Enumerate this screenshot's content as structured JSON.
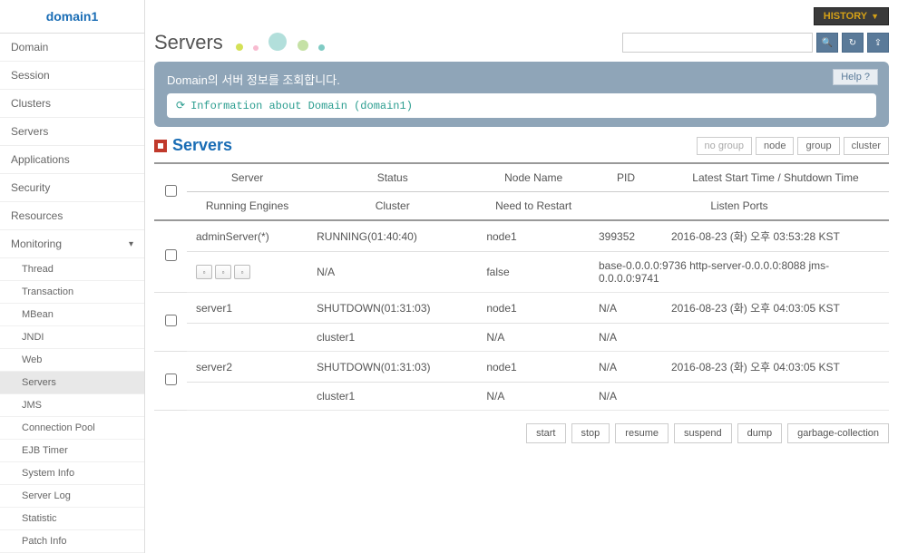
{
  "sidebar": {
    "title": "domain1",
    "items": [
      {
        "label": "Domain"
      },
      {
        "label": "Session"
      },
      {
        "label": "Clusters"
      },
      {
        "label": "Servers"
      },
      {
        "label": "Applications"
      },
      {
        "label": "Security"
      },
      {
        "label": "Resources"
      },
      {
        "label": "Monitoring",
        "expanded": true
      }
    ],
    "subitems": [
      {
        "label": "Thread"
      },
      {
        "label": "Transaction"
      },
      {
        "label": "MBean"
      },
      {
        "label": "JNDI"
      },
      {
        "label": "Web"
      },
      {
        "label": "Servers",
        "active": true
      },
      {
        "label": "JMS"
      },
      {
        "label": "Connection Pool"
      },
      {
        "label": "EJB Timer"
      },
      {
        "label": "System Info"
      },
      {
        "label": "Server Log"
      },
      {
        "label": "Statistic"
      },
      {
        "label": "Patch Info"
      }
    ]
  },
  "header": {
    "history_label": "HISTORY",
    "page_title": "Servers"
  },
  "info_panel": {
    "title": "Domain의 서버 정보를 조회합니다.",
    "subtitle": "Information about Domain (domain1)",
    "help_label": "Help ?"
  },
  "section": {
    "title": "Servers",
    "filters": [
      {
        "label": "no group",
        "secondary": true
      },
      {
        "label": "node"
      },
      {
        "label": "group"
      },
      {
        "label": "cluster"
      }
    ]
  },
  "table": {
    "headers_row1": [
      "Server",
      "Status",
      "Node Name",
      "PID",
      "Latest Start Time / Shutdown Time"
    ],
    "headers_row2": [
      "Running Engines",
      "Cluster",
      "Need to Restart",
      "Listen Ports"
    ],
    "rows": [
      {
        "server": "adminServer(*)",
        "status": "RUNNING(01:40:40)",
        "node": "node1",
        "pid": "399352",
        "time": "2016-08-23 (화) 오후 03:53:28 KST",
        "engines_icons": true,
        "cluster": "N/A",
        "restart": "false",
        "ports": "base-0.0.0.0:9736  http-server-0.0.0.0:8088  jms-0.0.0.0:9741"
      },
      {
        "server": "server1",
        "status": "SHUTDOWN(01:31:03)",
        "node": "node1",
        "pid": "N/A",
        "time": "2016-08-23 (화) 오후 04:03:05 KST",
        "cluster": "cluster1",
        "restart": "N/A",
        "ports": "N/A"
      },
      {
        "server": "server2",
        "status": "SHUTDOWN(01:31:03)",
        "node": "node1",
        "pid": "N/A",
        "time": "2016-08-23 (화) 오후 04:03:05 KST",
        "cluster": "cluster1",
        "restart": "N/A",
        "ports": "N/A"
      }
    ]
  },
  "actions": [
    {
      "label": "start"
    },
    {
      "label": "stop"
    },
    {
      "label": "resume"
    },
    {
      "label": "suspend"
    },
    {
      "label": "dump"
    },
    {
      "label": "garbage-collection"
    }
  ],
  "colors": {
    "decorative": [
      "#d4e157",
      "#f8bbd0",
      "#b2dfdb",
      "#c5e1a5",
      "#80cbc4"
    ]
  }
}
